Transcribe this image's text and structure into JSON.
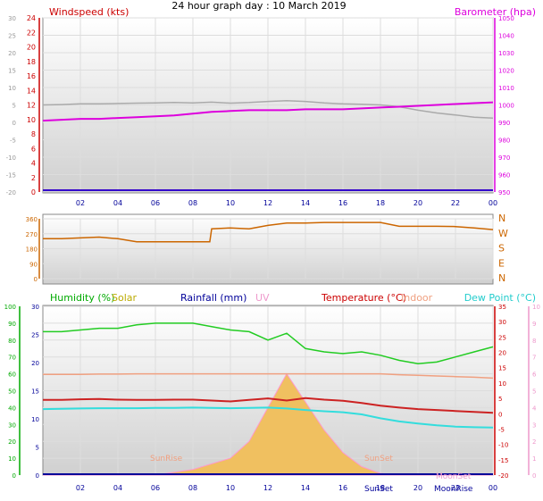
{
  "title": "24 hour graph day : 10 March 2019",
  "colors": {
    "grey": "#999999",
    "red": "#cc0000",
    "magenta": "#dd00dd",
    "purple": "#6600cc",
    "navy": "#000099",
    "orange": "#cc6600",
    "green": "#00bb00",
    "olive": "#bbaa00",
    "lightred": "#ee4444",
    "pink": "#ee99cc",
    "salmon": "#f0a080",
    "cyan": "#00cccc",
    "dewcyan": "#33dddd",
    "temp": "#cc2222",
    "hum": "#22cc22",
    "solarfill": "#f0c060",
    "solarline": "#ff99cc"
  },
  "x_ticks": [
    "02",
    "04",
    "06",
    "08",
    "10",
    "12",
    "14",
    "16",
    "18",
    "20",
    "22",
    "00"
  ],
  "panel1": {
    "left_label": "Windspeed (kts)",
    "right_label": "Barometer (hpa)",
    "grey_ticks": [
      "30",
      "25",
      "20",
      "15",
      "10",
      "5",
      "0",
      "-5",
      "-10",
      "-15",
      "-20"
    ],
    "red_ticks": [
      "24",
      "22",
      "20",
      "18",
      "16",
      "14",
      "12",
      "10",
      "8",
      "6",
      "4",
      "2",
      "0"
    ],
    "right_ticks": [
      "1050",
      "1040",
      "1030",
      "1020",
      "1010",
      "1000",
      "990",
      "980",
      "970",
      "960",
      "950"
    ]
  },
  "panel2": {
    "left_ticks": [
      "360",
      "270",
      "180",
      "90",
      "0"
    ],
    "right_ticks": [
      "N",
      "W",
      "S",
      "E",
      "N"
    ]
  },
  "panel3": {
    "labels": {
      "humidity": "Humidity (%)",
      "solar": "Solar",
      "rainfall": "Rainfall (mm)",
      "uv": "UV",
      "temperature": "Temperature (°C)",
      "indoor": "Indoor",
      "dewpoint": "Dew Point (°C)"
    },
    "humidity_ticks": [
      "100",
      "90",
      "80",
      "70",
      "60",
      "50",
      "40",
      "30",
      "20",
      "10",
      "0"
    ],
    "grey_ticks": [
      "30",
      "25",
      "20",
      "15",
      "10",
      "5",
      "0"
    ],
    "temp_ticks": [
      "35",
      "30",
      "25",
      "20",
      "15",
      "10",
      "5",
      "0",
      "-5",
      "-10",
      "-15",
      "-20"
    ],
    "uv_ticks": [
      "10",
      "9",
      "8",
      "7",
      "6",
      "5",
      "4",
      "3",
      "2",
      "1",
      "0"
    ],
    "annotations": {
      "sunrise": "SunRise",
      "sunset": "SunSet",
      "sunset2": "SunSet",
      "moonrise": "MoonRise",
      "moonset": "MoonSet"
    }
  },
  "chart_data": [
    {
      "type": "line",
      "title": "24 hour graph day : 10 March 2019",
      "x": [
        0,
        1,
        2,
        3,
        4,
        5,
        6,
        7,
        8,
        9,
        10,
        11,
        12,
        13,
        14,
        15,
        16,
        17,
        18,
        19,
        20,
        21,
        22,
        23,
        24
      ],
      "series": [
        {
          "name": "Windspeed (kts)",
          "values": [
            0,
            0,
            0,
            0,
            0,
            0,
            0,
            0,
            0,
            0,
            0,
            0,
            0,
            0,
            0,
            0,
            0,
            0,
            0,
            0,
            0,
            0,
            0,
            0,
            0
          ]
        },
        {
          "name": "Barometer (hpa)",
          "values": [
            991,
            991.5,
            992,
            992,
            992.5,
            993,
            993.5,
            994,
            995,
            996,
            996.5,
            997,
            997,
            997,
            997.5,
            997.5,
            997.5,
            998,
            998.5,
            999,
            999.5,
            1000,
            1000.5,
            1001,
            1001.5
          ]
        }
      ],
      "extra_series": [
        {
          "values": [
            5,
            5.1,
            5.3,
            5.3,
            5.4,
            5.5,
            5.6,
            5.7,
            5.6,
            5.8,
            5.5,
            5.7,
            6,
            6.2,
            6,
            5.6,
            5.3,
            5.2,
            5,
            4.5,
            3.5,
            2.7,
            2.1,
            1.5,
            1.2
          ]
        }
      ],
      "ylim_left": [
        0,
        24
      ],
      "ylim_right": [
        950,
        1050
      ]
    },
    {
      "type": "line",
      "x": [
        0,
        1,
        2,
        3,
        4,
        5,
        6,
        7,
        8,
        8.9,
        9,
        10,
        11,
        12,
        13,
        14,
        15,
        16,
        17,
        18,
        19,
        20,
        21,
        22,
        23,
        24
      ],
      "series": [
        {
          "name": "Wind direction",
          "values": [
            240,
            240,
            245,
            250,
            240,
            222,
            222,
            222,
            222,
            222,
            300,
            305,
            300,
            320,
            335,
            335,
            338,
            338,
            338,
            338,
            315,
            315,
            315,
            313,
            305,
            295
          ]
        }
      ],
      "ylim": [
        0,
        360
      ],
      "yticks": [
        "360",
        "270",
        "180",
        "90",
        "0"
      ],
      "right_ticks": [
        "N",
        "W",
        "S",
        "E",
        "N"
      ]
    },
    {
      "type": "line",
      "x": [
        0,
        1,
        2,
        3,
        4,
        5,
        6,
        7,
        8,
        9,
        10,
        11,
        12,
        13,
        14,
        15,
        16,
        17,
        18,
        19,
        20,
        21,
        22,
        23,
        24
      ],
      "series": [
        {
          "name": "Humidity (%)",
          "values": [
            85,
            85,
            86,
            87,
            87,
            89,
            90,
            90,
            90,
            88,
            86,
            85,
            80,
            84,
            75,
            73,
            72,
            73,
            71,
            68,
            66,
            67,
            70,
            73,
            76
          ]
        },
        {
          "name": "Temperature (°C)",
          "values": [
            4.5,
            4.5,
            4.7,
            4.8,
            4.6,
            4.5,
            4.5,
            4.6,
            4.6,
            4.3,
            4.0,
            4.5,
            5,
            4.3,
            5.1,
            4.6,
            4.2,
            3.5,
            2.6,
            2.0,
            1.5,
            1.2,
            0.9,
            0.6,
            0.3
          ]
        },
        {
          "name": "Indoor",
          "values": [
            12.8,
            12.8,
            12.8,
            12.9,
            12.9,
            13,
            13,
            13,
            13,
            13,
            13,
            13,
            13,
            13,
            13,
            13,
            13,
            13,
            13,
            12.7,
            12.5,
            12.3,
            12.1,
            11.9,
            11.6
          ]
        },
        {
          "name": "Dew Point (°C)",
          "values": [
            1.5,
            1.6,
            1.7,
            1.8,
            1.8,
            1.8,
            1.9,
            1.9,
            2,
            1.9,
            1.8,
            1.9,
            2,
            1.7,
            1.2,
            0.8,
            0.5,
            -0.2,
            -1.5,
            -2.5,
            -3.2,
            -3.8,
            -4.2,
            -4.4,
            -4.5
          ]
        },
        {
          "name": "Solar",
          "values": [
            0,
            0,
            0,
            0,
            0,
            0,
            0,
            0.5,
            1,
            2,
            3,
            6,
            12,
            18,
            13,
            8,
            4,
            1.5,
            0.3,
            0,
            0,
            0,
            0,
            0,
            0
          ]
        }
      ],
      "ylim_humidity": [
        0,
        100
      ],
      "ylim_temp": [
        -20,
        35
      ],
      "ylim_solar": [
        0,
        30
      ]
    }
  ]
}
